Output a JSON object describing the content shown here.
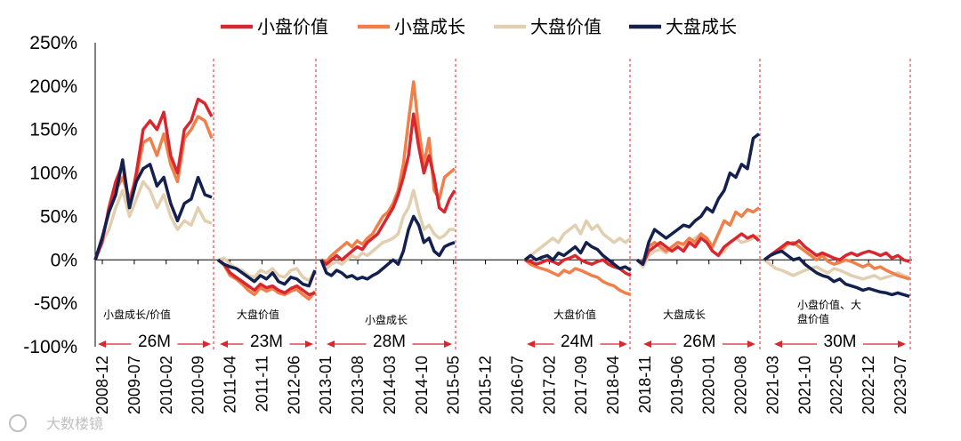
{
  "chart_data": {
    "type": "line",
    "title": "",
    "xlabel": "",
    "ylabel": "",
    "ylim": [
      -100,
      250
    ],
    "yticks": [
      250,
      200,
      150,
      100,
      50,
      0,
      -50,
      -100
    ],
    "ytick_labels": [
      "250%",
      "200%",
      "150%",
      "100%",
      "50%",
      "0%",
      "-50%",
      "-100%"
    ],
    "xtick_labels": [
      "2008-12",
      "2009-07",
      "2010-02",
      "2010-09",
      "2011-04",
      "2011-11",
      "2012-06",
      "2013-01",
      "2013-08",
      "2014-03",
      "2014-10",
      "2015-05",
      "2015-12",
      "2016-07",
      "2017-02",
      "2017-09",
      "2018-04",
      "2018-11",
      "2019-06",
      "2020-01",
      "2020-08",
      "2021-03",
      "2021-10",
      "2022-05",
      "2022-12",
      "2023-07"
    ],
    "legend": {
      "placement": "top"
    },
    "grid": false,
    "series": [
      {
        "name": "小盘价值",
        "color": "#d7282f"
      },
      {
        "name": "小盘成长",
        "color": "#f0804a"
      },
      {
        "name": "大盘价值",
        "color": "#e2cfb0"
      },
      {
        "name": "大盘成长",
        "color": "#14204d"
      }
    ],
    "periods": [
      {
        "label": "小盘成长/价值",
        "duration": "26M",
        "series": {
          "小盘价值": [
            0,
            20,
            60,
            90,
            110,
            60,
            100,
            150,
            160,
            150,
            170,
            120,
            100,
            150,
            160,
            185,
            180,
            165
          ],
          "小盘成长": [
            0,
            25,
            55,
            80,
            95,
            70,
            95,
            135,
            140,
            120,
            145,
            110,
            90,
            140,
            150,
            165,
            160,
            140
          ],
          "大盘价值": [
            0,
            20,
            35,
            60,
            80,
            50,
            70,
            90,
            80,
            60,
            75,
            50,
            35,
            45,
            40,
            60,
            45,
            42
          ],
          "大盘成长": [
            0,
            25,
            55,
            75,
            115,
            60,
            90,
            105,
            110,
            85,
            95,
            65,
            45,
            65,
            70,
            95,
            75,
            72
          ]
        }
      },
      {
        "label": "大盘价值",
        "duration": "23M",
        "series": {
          "小盘价值": [
            0,
            -5,
            -15,
            -20,
            -25,
            -30,
            -35,
            -28,
            -32,
            -30,
            -35,
            -38,
            -33,
            -30,
            -35,
            -40,
            -38
          ],
          "小盘成长": [
            0,
            -6,
            -18,
            -22,
            -28,
            -35,
            -40,
            -32,
            -36,
            -33,
            -38,
            -40,
            -36,
            -34,
            -40,
            -45,
            -36
          ],
          "大盘价值": [
            0,
            2,
            -5,
            -10,
            -12,
            -18,
            -20,
            -12,
            -15,
            -10,
            -18,
            -20,
            -12,
            -10,
            -20,
            -24,
            -12
          ],
          "大盘成长": [
            0,
            -5,
            -8,
            -10,
            -15,
            -20,
            -25,
            -18,
            -22,
            -15,
            -25,
            -28,
            -20,
            -22,
            -28,
            -30,
            -12
          ]
        }
      },
      {
        "label": "小盘成长",
        "duration": "28M",
        "series": {
          "小盘价值": [
            0,
            -5,
            0,
            5,
            0,
            5,
            10,
            15,
            12,
            20,
            25,
            30,
            40,
            50,
            60,
            75,
            95,
            120,
            168,
            130,
            100,
            120,
            95,
            60,
            55,
            70,
            80
          ],
          "小盘成长": [
            0,
            -2,
            5,
            10,
            15,
            20,
            15,
            22,
            18,
            25,
            30,
            40,
            50,
            55,
            65,
            80,
            110,
            160,
            205,
            150,
            110,
            140,
            80,
            70,
            95,
            100,
            105
          ],
          "大盘价值": [
            0,
            -10,
            -5,
            -2,
            -5,
            0,
            5,
            2,
            8,
            5,
            10,
            15,
            20,
            22,
            25,
            30,
            50,
            60,
            80,
            55,
            35,
            40,
            30,
            25,
            28,
            35,
            35
          ],
          "大盘成长": [
            0,
            -15,
            -18,
            -12,
            -15,
            -20,
            -18,
            -22,
            -20,
            -22,
            -18,
            -15,
            -10,
            -5,
            0,
            -5,
            10,
            35,
            50,
            40,
            20,
            25,
            10,
            5,
            15,
            18,
            20
          ]
        }
      },
      {
        "label": "大盘价值",
        "duration": "24M",
        "series": {
          "小盘价值": [
            0,
            -2,
            -5,
            -3,
            0,
            -2,
            -5,
            0,
            2,
            5,
            0,
            -3,
            -5,
            -2,
            0,
            -5,
            -8,
            -10,
            -15,
            -18
          ],
          "小盘成长": [
            0,
            -5,
            -8,
            -10,
            -12,
            -15,
            -18,
            -12,
            -15,
            -10,
            -12,
            -15,
            -18,
            -20,
            -25,
            -28,
            -30,
            -35,
            -38,
            -40
          ],
          "大盘价值": [
            0,
            5,
            10,
            15,
            20,
            25,
            20,
            30,
            35,
            40,
            30,
            45,
            35,
            40,
            30,
            25,
            20,
            25,
            20,
            25
          ],
          "大盘成长": [
            0,
            5,
            0,
            3,
            5,
            0,
            8,
            5,
            10,
            15,
            8,
            20,
            15,
            12,
            5,
            0,
            -5,
            -10,
            -8,
            -12
          ]
        }
      },
      {
        "label": "大盘成长",
        "duration": "26M",
        "series": {
          "小盘价值": [
            0,
            -5,
            10,
            15,
            20,
            15,
            10,
            15,
            10,
            20,
            15,
            25,
            20,
            10,
            5,
            15,
            20,
            25,
            30,
            25,
            28,
            22
          ],
          "小盘成长": [
            0,
            -3,
            15,
            20,
            15,
            10,
            15,
            20,
            18,
            25,
            20,
            30,
            25,
            15,
            30,
            45,
            40,
            55,
            50,
            58,
            55,
            60
          ],
          "大盘价值": [
            0,
            -8,
            5,
            10,
            12,
            8,
            15,
            20,
            15,
            20,
            25,
            30,
            22,
            10,
            5,
            10,
            20,
            25,
            20,
            22,
            25,
            28
          ],
          "大盘成长": [
            0,
            -5,
            20,
            35,
            30,
            25,
            30,
            35,
            40,
            38,
            45,
            50,
            60,
            55,
            70,
            80,
            100,
            95,
            110,
            105,
            140,
            145
          ]
        }
      },
      {
        "label": "小盘价值、大盘价值",
        "duration": "30M",
        "series": {
          "小盘价值": [
            0,
            5,
            10,
            15,
            20,
            18,
            22,
            15,
            10,
            5,
            8,
            5,
            2,
            0,
            5,
            8,
            5,
            8,
            10,
            8,
            5,
            8,
            2,
            5,
            0,
            -2
          ],
          "小盘成长": [
            0,
            5,
            10,
            12,
            18,
            20,
            15,
            10,
            5,
            0,
            5,
            -2,
            -5,
            -3,
            0,
            -2,
            -5,
            -8,
            -5,
            -10,
            -8,
            -12,
            -15,
            -18,
            -20,
            -22
          ],
          "大盘价值": [
            0,
            -5,
            -10,
            -12,
            -15,
            -18,
            -15,
            -12,
            -10,
            -8,
            -12,
            -15,
            -10,
            -12,
            -15,
            -18,
            -20,
            -22,
            -20,
            -18,
            -22,
            -20,
            -18,
            -15,
            -18,
            -20
          ],
          "大盘成长": [
            0,
            5,
            8,
            10,
            5,
            0,
            2,
            -5,
            -10,
            -15,
            -18,
            -20,
            -25,
            -22,
            -28,
            -30,
            -32,
            -35,
            -33,
            -35,
            -37,
            -38,
            -40,
            -38,
            -40,
            -42
          ]
        }
      }
    ],
    "annotations": [
      {
        "lines": [
          "小盘成长/价值"
        ]
      },
      {
        "lines": [
          "大盘价值"
        ]
      },
      {
        "lines": [
          "小盘成长"
        ]
      },
      {
        "lines": [
          "大盘价值"
        ]
      },
      {
        "lines": [
          "大盘成长"
        ]
      },
      {
        "lines": [
          "小盘价值、大",
          "盘价值"
        ]
      }
    ],
    "durations": [
      "26M",
      "23M",
      "28M",
      "24M",
      "26M",
      "30M"
    ]
  },
  "watermark": "大数楼镜",
  "colors": {
    "boundary": "#d7282f",
    "axis": "#000000",
    "arrow": "#d7282f"
  }
}
